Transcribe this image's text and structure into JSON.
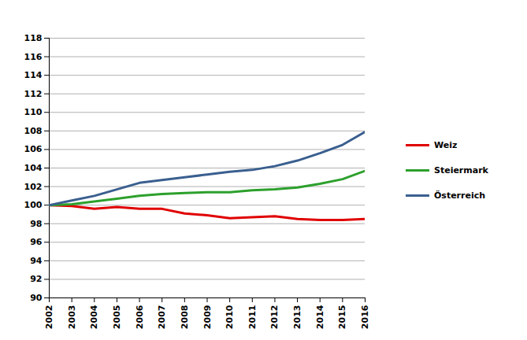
{
  "chart_data": {
    "type": "line",
    "x": [
      2002,
      2003,
      2004,
      2005,
      2006,
      2007,
      2008,
      2009,
      2010,
      2011,
      2012,
      2013,
      2014,
      2015,
      2016
    ],
    "series": [
      {
        "name": "Weiz",
        "color": "#e00000",
        "values": [
          100,
          99.9,
          99.6,
          99.8,
          99.6,
          99.6,
          99.1,
          98.9,
          98.6,
          98.7,
          98.8,
          98.5,
          98.4,
          98.4,
          98.5
        ]
      },
      {
        "name": "Steiermark",
        "color": "#2ca02c",
        "values": [
          100,
          100.1,
          100.4,
          100.7,
          101.0,
          101.2,
          101.3,
          101.4,
          101.4,
          101.6,
          101.7,
          101.9,
          102.3,
          102.8,
          103.7
        ]
      },
      {
        "name": "Österreich",
        "color": "#3a5f8f",
        "values": [
          100,
          100.5,
          101.0,
          101.7,
          102.4,
          102.7,
          103.0,
          103.3,
          103.6,
          103.8,
          104.2,
          104.8,
          105.6,
          106.5,
          107.9
        ]
      }
    ],
    "xlim": [
      2002,
      2016
    ],
    "xticks": [
      2002,
      2003,
      2004,
      2005,
      2006,
      2007,
      2008,
      2009,
      2010,
      2011,
      2012,
      2013,
      2014,
      2015,
      2016
    ],
    "ylim": [
      90,
      118
    ],
    "yticks": [
      90,
      92,
      94,
      96,
      98,
      100,
      102,
      104,
      106,
      108,
      110,
      112,
      114,
      116,
      118
    ],
    "grid": true,
    "legend": "right"
  }
}
